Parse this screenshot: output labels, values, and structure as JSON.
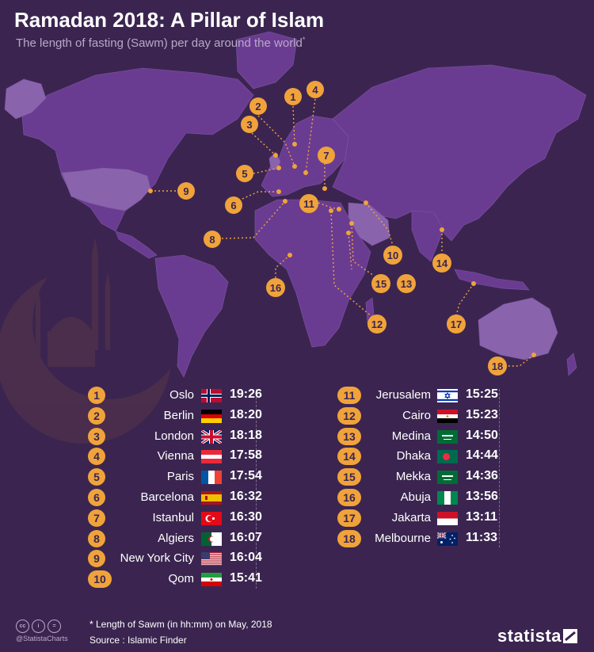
{
  "header": {
    "title": "Ramadan 2018: A Pillar of Islam",
    "subtitle": "The length of fasting (Sawm) per day around the world",
    "subtitle_mark": "*"
  },
  "chart_data": {
    "type": "table",
    "unit": "hh:mm",
    "rows": [
      {
        "num": "1",
        "city": "Oslo",
        "time": "19:26",
        "flag": "norway-flag",
        "minutes": 1166
      },
      {
        "num": "2",
        "city": "Berlin",
        "time": "18:20",
        "flag": "germany-flag",
        "minutes": 1100
      },
      {
        "num": "3",
        "city": "London",
        "time": "18:18",
        "flag": "uk-flag",
        "minutes": 1098
      },
      {
        "num": "4",
        "city": "Vienna",
        "time": "17:58",
        "flag": "austria-flag",
        "minutes": 1078
      },
      {
        "num": "5",
        "city": "Paris",
        "time": "17:54",
        "flag": "france-flag",
        "minutes": 1074
      },
      {
        "num": "6",
        "city": "Barcelona",
        "time": "16:32",
        "flag": "spain-flag",
        "minutes": 992
      },
      {
        "num": "7",
        "city": "Istanbul",
        "time": "16:30",
        "flag": "turkey-flag",
        "minutes": 990
      },
      {
        "num": "8",
        "city": "Algiers",
        "time": "16:07",
        "flag": "algeria-flag",
        "minutes": 967
      },
      {
        "num": "9",
        "city": "New York City",
        "time": "16:04",
        "flag": "usa-flag",
        "minutes": 964
      },
      {
        "num": "10",
        "city": "Qom",
        "time": "15:41",
        "flag": "iran-flag",
        "minutes": 941
      },
      {
        "num": "11",
        "city": "Jerusalem",
        "time": "15:25",
        "flag": "israel-flag",
        "minutes": 925
      },
      {
        "num": "12",
        "city": "Cairo",
        "time": "15:23",
        "flag": "egypt-flag",
        "minutes": 923
      },
      {
        "num": "13",
        "city": "Medina",
        "time": "14:50",
        "flag": "saudi-arabia-flag",
        "minutes": 890
      },
      {
        "num": "14",
        "city": "Dhaka",
        "time": "14:44",
        "flag": "bangladesh-flag",
        "minutes": 884
      },
      {
        "num": "15",
        "city": "Mekka",
        "time": "14:36",
        "flag": "saudi-arabia-flag",
        "minutes": 876
      },
      {
        "num": "16",
        "city": "Abuja",
        "time": "13:56",
        "flag": "nigeria-flag",
        "minutes": 836
      },
      {
        "num": "17",
        "city": "Jakarta",
        "time": "13:11",
        "flag": "indonesia-flag",
        "minutes": 791
      },
      {
        "num": "18",
        "city": "Melbourne",
        "time": "11:33",
        "flag": "australia-flag",
        "minutes": 693
      }
    ]
  },
  "footer": {
    "note": "* Length of Sawm (in hh:mm) on May, 2018",
    "source": "Source : Islamic Finder",
    "handle": "@StatistaCharts",
    "brand": "statista"
  },
  "colors": {
    "background": "#3b2550",
    "land": "#6a3c91",
    "land_highlight": "#8a63ad",
    "accent": "#f0a33a",
    "crescent": "#4d2f4b"
  },
  "icons": {
    "watermark": "mosque-crescent-icon",
    "license": [
      "cc-icon",
      "by-icon",
      "nd-icon"
    ],
    "brand": "statista-logo-icon"
  }
}
